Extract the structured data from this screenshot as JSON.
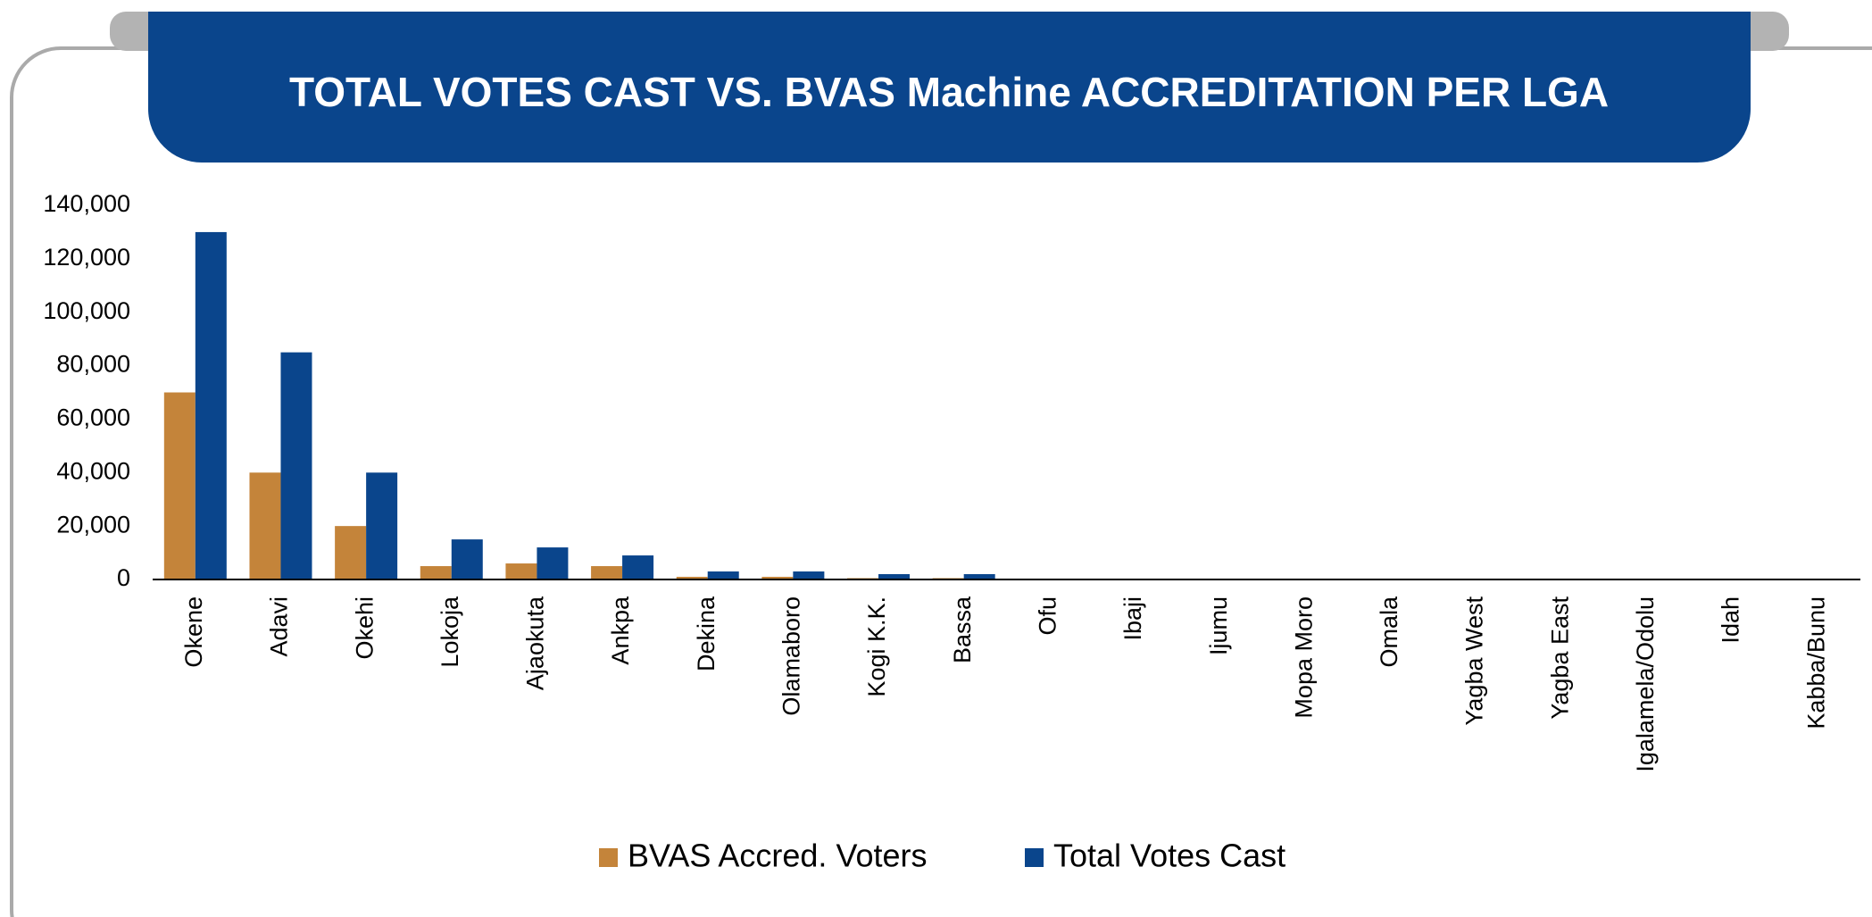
{
  "chart_data": {
    "type": "bar",
    "title": "TOTAL VOTES CAST VS. BVAS Machine ACCREDITATION PER LGA",
    "categories": [
      "Okene",
      "Adavi",
      "Okehi",
      "Lokoja",
      "Ajaokuta",
      "Ankpa",
      "Dekina",
      "Olamaboro",
      "Kogi K.K.",
      "Bassa",
      "Ofu",
      "Ibaji",
      "Ijumu",
      "Mopa Moro",
      "Omala",
      "Yagba West",
      "Yagba East",
      "Igalamela/Odolu",
      "Idah",
      "Kabba/Bunu"
    ],
    "series": [
      {
        "name": "BVAS Accred. Voters",
        "color": "#c4843a",
        "values": [
          70000,
          40000,
          20000,
          5000,
          6000,
          5000,
          1000,
          1000,
          500,
          500,
          0,
          0,
          0,
          0,
          0,
          0,
          0,
          0,
          0,
          0
        ]
      },
      {
        "name": "Total Votes Cast",
        "color": "#0a458c",
        "values": [
          130000,
          85000,
          40000,
          15000,
          12000,
          9000,
          3000,
          3000,
          2000,
          2000,
          0,
          0,
          0,
          0,
          0,
          0,
          0,
          0,
          0,
          0
        ]
      }
    ],
    "ylim": [
      0,
      140000
    ],
    "yticks": [
      0,
      {
        "value": 20000,
        "label": "20,000"
      },
      {
        "value": 40000,
        "label": "40,000"
      },
      {
        "value": 60000,
        "label": "60,000"
      },
      {
        "value": 80000,
        "label": "80,000"
      },
      {
        "value": 100000,
        "label": "100,000"
      },
      {
        "value": 120000,
        "label": "120,000"
      },
      {
        "value": 140000,
        "label": "140,000"
      }
    ],
    "grid": false,
    "legend": "bottom"
  }
}
